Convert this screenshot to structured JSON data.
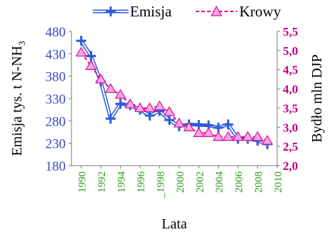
{
  "chart_data": {
    "type": "line",
    "xlabel": "Lata",
    "ylabel_left": "Emisja tys. t N-NH",
    "ylabel_left_subscript": "3",
    "ylabel_right": "Bydło mln DJP",
    "x_ticks": [
      "1990",
      "1992",
      "1994",
      "1996",
      "_1998",
      "2000",
      "2002",
      "2004",
      "2006",
      "2008",
      "2010"
    ],
    "x_tick_values": [
      1990,
      1992,
      1994,
      1996,
      1998,
      2000,
      2002,
      2004,
      2006,
      2008,
      2010
    ],
    "xlim": [
      1989,
      2010
    ],
    "y_left_ticks": [
      "480",
      "430",
      "380",
      "330",
      "280",
      "230",
      "180"
    ],
    "y_left_tick_values": [
      480,
      430,
      380,
      330,
      280,
      230,
      180
    ],
    "ylim_left": [
      180,
      480
    ],
    "y_right_ticks": [
      "5,5",
      "5,0",
      "4,5",
      "4,0",
      "3,5",
      "3,0",
      "2,5",
      "2,0"
    ],
    "y_right_tick_values": [
      5.5,
      5.0,
      4.5,
      4.0,
      3.5,
      3.0,
      2.5,
      2.0
    ],
    "ylim_right": [
      2.0,
      5.5
    ],
    "grid": false,
    "legend_position": "top",
    "colors": {
      "emisja": "#2E5BD8",
      "emisja_inner": "#ffffff",
      "krowy": "#E0109A",
      "krowy_marker": "#F2A8E2",
      "x_tick_color": "#2E9A1E",
      "left_axis_color": "#3A48C8",
      "right_axis_color": "#C0007A"
    },
    "series": [
      {
        "name": "Emisja",
        "axis": "left",
        "x": [
          1990,
          1991,
          1992,
          1993,
          1994,
          1995,
          1996,
          1997,
          1998,
          1999,
          2000,
          2001,
          2002,
          2003,
          2004,
          2005,
          2006,
          2007,
          2008,
          2009
        ],
        "values": [
          459,
          425,
          368,
          285,
          318,
          315,
          305,
          292,
          302,
          282,
          268,
          272,
          271,
          270,
          265,
          272,
          240,
          240,
          236,
          228
        ]
      },
      {
        "name": "Krowy",
        "axis": "right",
        "x": [
          1990,
          1991,
          1992,
          1993,
          1994,
          1995,
          1996,
          1997,
          1998,
          1999,
          2000,
          2001,
          2002,
          2003,
          2004,
          2005,
          2006,
          2007,
          2008,
          2009
        ],
        "values": [
          4.95,
          4.6,
          4.25,
          4.0,
          3.85,
          3.6,
          3.5,
          3.5,
          3.55,
          3.4,
          3.1,
          3.0,
          2.85,
          2.85,
          2.75,
          2.75,
          2.75,
          2.75,
          2.75,
          2.65
        ]
      }
    ]
  }
}
